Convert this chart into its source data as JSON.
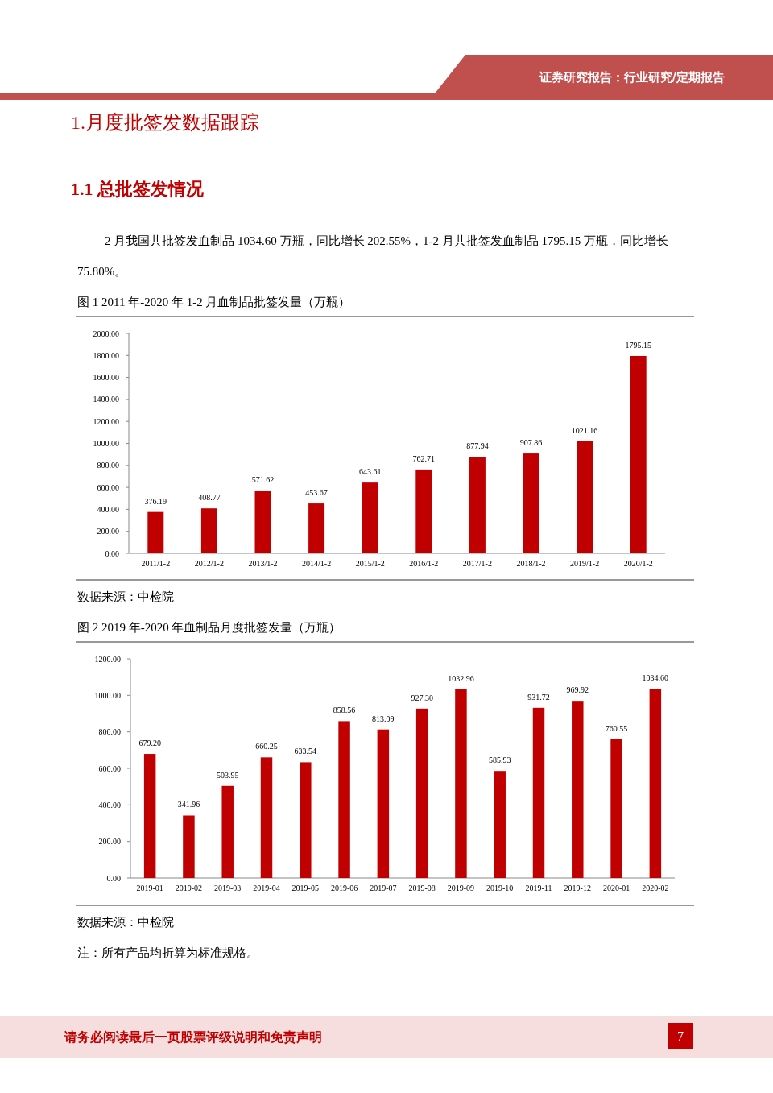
{
  "chart_data": [
    {
      "type": "bar",
      "title": "图 1 2011 年-2020 年 1-2 月血制品批签发量（万瓶）",
      "annotations": [
        "证券研究报告：行业研究/定期报告",
        "1.月度批签发数据跟踪",
        "1.1  总批签发情况",
        "2 月我国共批签发血制品 1034.60 万瓶，同比增长 202.55%，1-2 月共批签发血制品 1795.15 万瓶，同比增长 75.80%。",
        "数据来源：中检院"
      ],
      "categories": [
        "2011/1-2",
        "2012/1-2",
        "2013/1-2",
        "2014/1-2",
        "2015/1-2",
        "2016/1-2",
        "2017/1-2",
        "2018/1-2",
        "2019/1-2",
        "2020/1-2"
      ],
      "values": [
        376.19,
        408.77,
        571.62,
        453.67,
        643.61,
        762.71,
        877.94,
        907.86,
        1021.16,
        1795.15
      ],
      "value_labels": [
        "376.19",
        "408.77",
        "571.62",
        "453.67",
        "643.61",
        "762.71",
        "877.94",
        "907.86",
        "1021.16",
        "1795.15"
      ],
      "color": "#c00000",
      "ylim": [
        0,
        2000
      ],
      "yticks": [
        {
          "value": 0,
          "label": "0.00"
        },
        {
          "value": 200,
          "label": "200.00"
        },
        {
          "value": 400,
          "label": "400.00"
        },
        {
          "value": 600,
          "label": "600.00"
        },
        {
          "value": 800,
          "label": "800.00"
        },
        {
          "value": 1000,
          "label": "1000.00"
        },
        {
          "value": 1200,
          "label": "1200.00"
        },
        {
          "value": 1400,
          "label": "1400.00"
        },
        {
          "value": 1600,
          "label": "1600.00"
        },
        {
          "value": 1800,
          "label": "1800.00"
        },
        {
          "value": 2000,
          "label": "2000.00"
        }
      ]
    },
    {
      "type": "bar",
      "title": "图 2 2019 年-2020 年血制品月度批签发量（万瓶）",
      "annotations": [
        "数据来源：中检院",
        "注：所有产品均折算为标准规格。",
        "请务必阅读最后一页股票评级说明和免责声明",
        "7"
      ],
      "categories": [
        "2019-01",
        "2019-02",
        "2019-03",
        "2019-04",
        "2019-05",
        "2019-06",
        "2019-07",
        "2019-08",
        "2019-09",
        "2019-10",
        "2019-11",
        "2019-12",
        "2020-01",
        "2020-02"
      ],
      "values": [
        679.2,
        341.96,
        503.95,
        660.25,
        633.54,
        858.56,
        813.09,
        927.3,
        1032.96,
        585.93,
        931.72,
        969.92,
        760.55,
        1034.6
      ],
      "value_labels": [
        "679.20",
        "341.96",
        "503.95",
        "660.25",
        "633.54",
        "858.56",
        "813.09",
        "927.30",
        "1032.96",
        "585.93",
        "931.72",
        "969.92",
        "760.55",
        "1034.60"
      ],
      "color": "#c00000",
      "ylim": [
        0,
        1200
      ],
      "yticks": [
        {
          "value": 0,
          "label": "0.00"
        },
        {
          "value": 200,
          "label": "200.00"
        },
        {
          "value": 400,
          "label": "400.00"
        },
        {
          "value": 600,
          "label": "600.00"
        },
        {
          "value": 800,
          "label": "800.00"
        },
        {
          "value": 1000,
          "label": "1000.00"
        },
        {
          "value": 1200,
          "label": "1200.00"
        }
      ]
    }
  ]
}
